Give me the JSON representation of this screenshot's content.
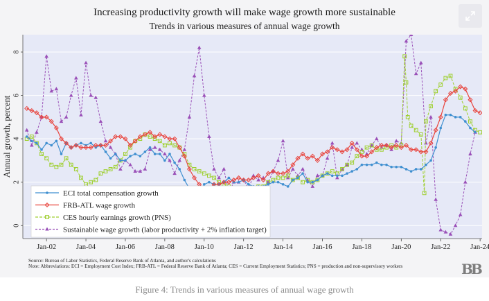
{
  "figure": {
    "title": "Increasing productivity growth will make wage growth more sustainable",
    "subtitle": "Trends in various measures of annual wage growth",
    "source": "Source: Bureau of Labor Statistics, Federal Reserve Bank of Atlanta, and author's calculations",
    "note": "Note: Abbreviations: ECI = Employment Cost Index; FRB-ATL = Federal Reserve Bank of Atlanta; CES = Current Employment Statistics; PNS = production and non-supervisory workers",
    "logo": "BB",
    "expand_icon": "expand-arrows-icon"
  },
  "caption": "Figure 4: Trends in various measures of annual wage growth",
  "chart_data": {
    "type": "line",
    "title": "Increasing productivity growth will make wage growth more sustainable",
    "subtitle": "Trends in various measures of annual wage growth",
    "xlabel": "",
    "ylabel": "Annual growth, percent",
    "xlim": [
      2000.8,
      2024.1
    ],
    "ylim": [
      -0.6,
      8.8
    ],
    "yticks": [
      0,
      2,
      4,
      6,
      8
    ],
    "xticks": [
      {
        "value": 2002,
        "label": "Jan-02"
      },
      {
        "value": 2004,
        "label": "Jan-04"
      },
      {
        "value": 2006,
        "label": "Jan-06"
      },
      {
        "value": 2008,
        "label": "Jan-08"
      },
      {
        "value": 2010,
        "label": "Jan-10"
      },
      {
        "value": 2012,
        "label": "Jan-12"
      },
      {
        "value": 2014,
        "label": "Jan-14"
      },
      {
        "value": 2016,
        "label": "Jan-16"
      },
      {
        "value": 2018,
        "label": "Jan-18"
      },
      {
        "value": 2020,
        "label": "Jan-20"
      },
      {
        "value": 2022,
        "label": "Jan-22"
      },
      {
        "value": 2024,
        "label": "Jan-24"
      }
    ],
    "grid": true,
    "legend_position": "bottom-left",
    "series": [
      {
        "name": "ECI total compensation growth",
        "color": "#3f8fd0",
        "marker": "circle",
        "dash": "solid",
        "x": [
          2001.0,
          2001.25,
          2001.5,
          2001.75,
          2002.0,
          2002.25,
          2002.5,
          2002.75,
          2003.0,
          2003.25,
          2003.5,
          2003.75,
          2004.0,
          2004.25,
          2004.5,
          2004.75,
          2005.0,
          2005.25,
          2005.5,
          2005.75,
          2006.0,
          2006.25,
          2006.5,
          2006.75,
          2007.0,
          2007.25,
          2007.5,
          2007.75,
          2008.0,
          2008.25,
          2008.5,
          2008.75,
          2009.0,
          2009.25,
          2009.5,
          2009.75,
          2010.0,
          2010.25,
          2010.5,
          2010.75,
          2011.0,
          2011.25,
          2011.5,
          2011.75,
          2012.0,
          2012.25,
          2012.5,
          2012.75,
          2013.0,
          2013.25,
          2013.5,
          2013.75,
          2014.0,
          2014.25,
          2014.5,
          2014.75,
          2015.0,
          2015.25,
          2015.5,
          2015.75,
          2016.0,
          2016.25,
          2016.5,
          2016.75,
          2017.0,
          2017.25,
          2017.5,
          2017.75,
          2018.0,
          2018.25,
          2018.5,
          2018.75,
          2019.0,
          2019.25,
          2019.5,
          2019.75,
          2020.0,
          2020.25,
          2020.5,
          2020.75,
          2021.0,
          2021.25,
          2021.5,
          2021.75,
          2022.0,
          2022.25,
          2022.5,
          2022.75,
          2023.0,
          2023.25,
          2023.5,
          2023.75
        ],
        "values": [
          4.1,
          3.9,
          3.8,
          3.5,
          3.8,
          3.7,
          3.9,
          3.3,
          3.8,
          3.6,
          3.7,
          3.8,
          3.7,
          3.8,
          3.6,
          3.7,
          3.4,
          3.1,
          3.3,
          3.0,
          3.0,
          3.2,
          3.3,
          3.2,
          3.4,
          3.6,
          3.3,
          3.3,
          3.0,
          3.3,
          2.9,
          2.6,
          2.1,
          1.7,
          1.6,
          1.4,
          1.9,
          2.0,
          1.9,
          1.9,
          2.0,
          2.2,
          2.0,
          2.0,
          2.1,
          1.9,
          1.8,
          1.8,
          1.8,
          1.9,
          2.0,
          2.0,
          1.9,
          1.8,
          2.1,
          2.2,
          2.4,
          2.0,
          2.0,
          2.1,
          2.3,
          2.4,
          2.3,
          2.3,
          2.3,
          2.4,
          2.5,
          2.6,
          2.8,
          2.8,
          2.8,
          2.9,
          2.8,
          2.8,
          2.7,
          2.7,
          2.7,
          2.6,
          2.5,
          2.6,
          2.6,
          2.8,
          3.0,
          3.6,
          4.5,
          5.1,
          5.1,
          5.0,
          5.0,
          4.8,
          4.5,
          4.3
        ]
      },
      {
        "name": "FRB-ATL wage growth",
        "color": "#e8433c",
        "marker": "diamond",
        "dash": "solid",
        "x": [
          2001.0,
          2001.25,
          2001.5,
          2001.75,
          2002.0,
          2002.25,
          2002.5,
          2002.75,
          2003.0,
          2003.25,
          2003.5,
          2003.75,
          2004.0,
          2004.25,
          2004.5,
          2004.75,
          2005.0,
          2005.25,
          2005.5,
          2005.75,
          2006.0,
          2006.25,
          2006.5,
          2006.75,
          2007.0,
          2007.25,
          2007.5,
          2007.75,
          2008.0,
          2008.25,
          2008.5,
          2008.75,
          2009.0,
          2009.25,
          2009.5,
          2009.75,
          2010.0,
          2010.25,
          2010.5,
          2010.75,
          2011.0,
          2011.25,
          2011.5,
          2011.75,
          2012.0,
          2012.25,
          2012.5,
          2012.75,
          2013.0,
          2013.25,
          2013.5,
          2013.75,
          2014.0,
          2014.25,
          2014.5,
          2014.75,
          2015.0,
          2015.25,
          2015.5,
          2015.75,
          2016.0,
          2016.25,
          2016.5,
          2016.75,
          2017.0,
          2017.25,
          2017.5,
          2017.75,
          2018.0,
          2018.25,
          2018.5,
          2018.75,
          2019.0,
          2019.25,
          2019.5,
          2019.75,
          2020.0,
          2020.25,
          2020.5,
          2020.75,
          2021.0,
          2021.25,
          2021.5,
          2021.75,
          2022.0,
          2022.25,
          2022.5,
          2022.75,
          2023.0,
          2023.25,
          2023.5,
          2023.75,
          2024.0
        ],
        "values": [
          5.4,
          5.3,
          5.2,
          5.0,
          5.0,
          4.8,
          4.5,
          4.0,
          3.8,
          3.6,
          3.7,
          3.6,
          3.6,
          3.6,
          3.7,
          3.7,
          3.7,
          3.9,
          4.1,
          4.1,
          4.0,
          3.7,
          3.9,
          4.1,
          4.2,
          4.3,
          4.1,
          4.2,
          4.1,
          4.0,
          4.0,
          3.6,
          3.2,
          2.6,
          2.2,
          1.9,
          1.7,
          1.7,
          1.9,
          1.9,
          2.0,
          2.0,
          2.1,
          2.2,
          2.1,
          2.1,
          2.2,
          2.3,
          2.1,
          2.4,
          2.5,
          2.4,
          2.4,
          2.5,
          2.8,
          3.1,
          3.3,
          3.1,
          3.2,
          3.0,
          3.3,
          3.4,
          3.6,
          3.5,
          3.4,
          3.5,
          3.8,
          3.5,
          3.2,
          3.2,
          3.4,
          3.6,
          3.7,
          3.7,
          3.6,
          3.7,
          3.6,
          3.7,
          3.5,
          3.5,
          3.4,
          3.4,
          3.8,
          4.4,
          5.0,
          5.8,
          6.1,
          6.2,
          6.4,
          6.3,
          5.8,
          5.3,
          5.2
        ]
      },
      {
        "name": "CES hourly earnings growth (PNS)",
        "color": "#9ecf2e",
        "marker": "square",
        "dash": "dash",
        "x": [
          2001.0,
          2001.25,
          2001.5,
          2001.75,
          2002.0,
          2002.25,
          2002.5,
          2002.75,
          2003.0,
          2003.25,
          2003.5,
          2003.75,
          2004.0,
          2004.25,
          2004.5,
          2004.75,
          2005.0,
          2005.25,
          2005.5,
          2005.75,
          2006.0,
          2006.25,
          2006.5,
          2006.75,
          2007.0,
          2007.25,
          2007.5,
          2007.75,
          2008.0,
          2008.25,
          2008.5,
          2008.75,
          2009.0,
          2009.25,
          2009.5,
          2009.75,
          2010.0,
          2010.25,
          2010.5,
          2010.75,
          2011.0,
          2011.25,
          2011.5,
          2011.75,
          2012.0,
          2012.25,
          2012.5,
          2012.75,
          2013.0,
          2013.25,
          2013.5,
          2013.75,
          2014.0,
          2014.25,
          2014.5,
          2014.75,
          2015.0,
          2015.25,
          2015.5,
          2015.75,
          2016.0,
          2016.25,
          2016.5,
          2016.75,
          2017.0,
          2017.25,
          2017.5,
          2017.75,
          2018.0,
          2018.25,
          2018.5,
          2018.75,
          2019.0,
          2019.25,
          2019.5,
          2019.75,
          2020.0,
          2020.17,
          2020.25,
          2020.33,
          2020.5,
          2020.75,
          2021.0,
          2021.17,
          2021.25,
          2021.5,
          2021.75,
          2022.0,
          2022.25,
          2022.5,
          2022.75,
          2023.0,
          2023.25,
          2023.5,
          2023.75,
          2024.0
        ],
        "values": [
          4.0,
          4.1,
          3.8,
          3.3,
          3.1,
          2.8,
          2.7,
          2.8,
          3.1,
          2.8,
          2.6,
          2.2,
          1.9,
          2.0,
          2.1,
          2.4,
          2.5,
          2.6,
          2.7,
          3.0,
          3.3,
          3.6,
          3.9,
          4.0,
          4.2,
          4.1,
          4.0,
          3.9,
          3.7,
          3.8,
          3.7,
          3.6,
          3.3,
          2.8,
          2.6,
          2.5,
          2.4,
          2.3,
          2.2,
          2.0,
          1.9,
          1.8,
          1.7,
          1.5,
          1.6,
          1.4,
          1.3,
          1.8,
          1.8,
          2.0,
          2.1,
          2.2,
          2.2,
          2.3,
          2.1,
          2.2,
          2.0,
          2.1,
          2.0,
          2.1,
          2.3,
          2.4,
          2.5,
          2.4,
          2.6,
          2.8,
          2.9,
          3.2,
          3.4,
          3.6,
          3.7,
          3.5,
          3.5,
          3.6,
          3.7,
          3.6,
          3.7,
          7.8,
          6.6,
          5.0,
          4.6,
          4.4,
          4.2,
          1.5,
          4.8,
          5.5,
          6.2,
          6.5,
          6.8,
          6.9,
          6.3,
          5.9,
          5.4,
          4.8,
          4.4,
          4.3
        ]
      },
      {
        "name": "Sustainable wage growth (labor productivity + 2% inflation target)",
        "color": "#9a50b8",
        "marker": "triangle",
        "dash": "dot",
        "x": [
          2001.0,
          2001.25,
          2001.5,
          2001.75,
          2002.0,
          2002.25,
          2002.5,
          2002.75,
          2003.0,
          2003.25,
          2003.5,
          2003.75,
          2004.0,
          2004.25,
          2004.5,
          2004.75,
          2005.0,
          2005.25,
          2005.5,
          2005.75,
          2006.0,
          2006.25,
          2006.5,
          2006.75,
          2007.0,
          2007.25,
          2007.5,
          2007.75,
          2008.0,
          2008.25,
          2008.5,
          2008.75,
          2009.0,
          2009.25,
          2009.5,
          2009.75,
          2010.0,
          2010.25,
          2010.5,
          2010.75,
          2011.0,
          2011.25,
          2011.5,
          2011.75,
          2012.0,
          2012.25,
          2012.5,
          2012.75,
          2013.0,
          2013.25,
          2013.5,
          2013.75,
          2014.0,
          2014.25,
          2014.5,
          2014.75,
          2015.0,
          2015.25,
          2015.5,
          2015.75,
          2016.0,
          2016.25,
          2016.5,
          2016.75,
          2017.0,
          2017.25,
          2017.5,
          2017.75,
          2018.0,
          2018.25,
          2018.5,
          2018.75,
          2019.0,
          2019.25,
          2019.5,
          2019.75,
          2020.0,
          2020.25,
          2020.5,
          2020.75,
          2021.0,
          2021.25,
          2021.5,
          2021.75,
          2022.0,
          2022.25,
          2022.5,
          2022.75,
          2023.0,
          2023.25,
          2023.5,
          2023.75
        ],
        "values": [
          4.4,
          3.7,
          4.3,
          5.0,
          7.8,
          6.2,
          6.3,
          4.8,
          5.0,
          6.0,
          6.8,
          5.1,
          7.5,
          6.0,
          5.9,
          4.8,
          3.9,
          3.6,
          3.3,
          2.6,
          3.0,
          2.8,
          2.5,
          2.5,
          2.6,
          3.5,
          3.6,
          3.5,
          3.3,
          3.0,
          2.4,
          3.0,
          3.5,
          5.0,
          6.9,
          8.2,
          6.0,
          4.1,
          2.6,
          2.2,
          2.6,
          1.5,
          2.0,
          2.0,
          2.1,
          1.7,
          2.3,
          2.1,
          2.2,
          2.0,
          2.5,
          3.0,
          3.9,
          2.2,
          2.6,
          2.3,
          2.6,
          2.1,
          1.8,
          2.3,
          2.3,
          3.1,
          3.8,
          2.2,
          2.6,
          2.8,
          3.6,
          3.8,
          3.5,
          3.3,
          3.7,
          4.0,
          3.6,
          3.7,
          3.5,
          3.9,
          3.8,
          8.5,
          8.8,
          7.0,
          7.5,
          3.8,
          5.0,
          1.2,
          -0.2,
          -0.3,
          -0.4,
          0.0,
          0.5,
          2.0,
          3.3,
          4.3
        ]
      }
    ]
  }
}
